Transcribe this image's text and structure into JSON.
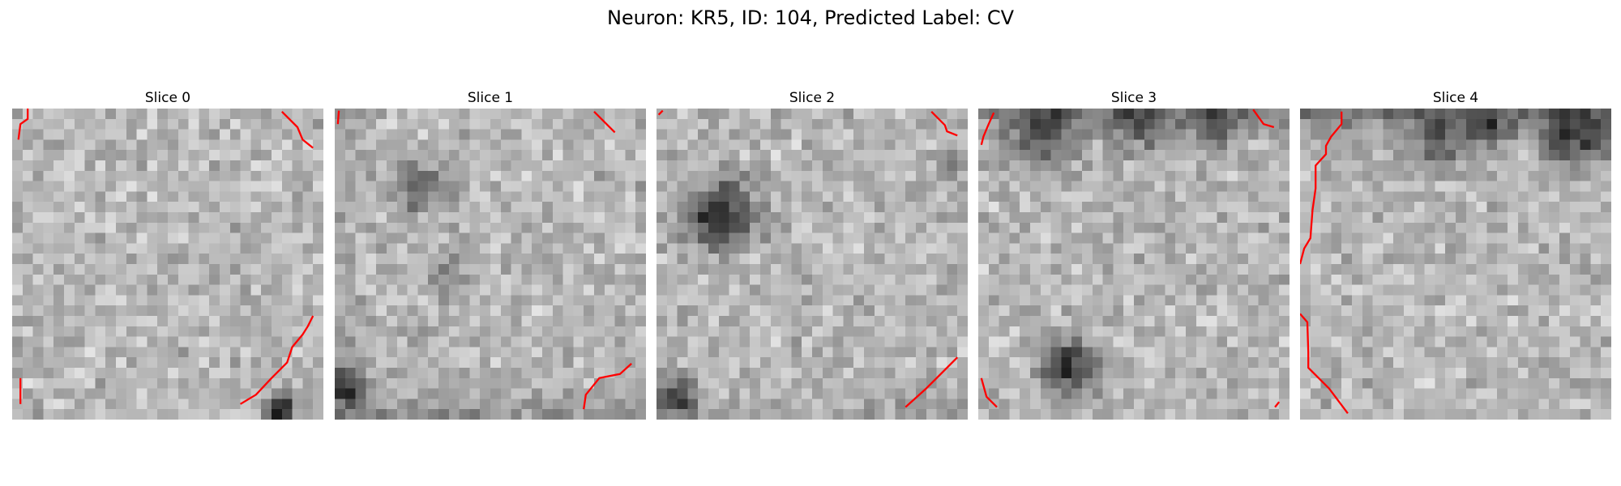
{
  "figure": {
    "title": "Neuron: KR5, ID: 104, Predicted Label: CV",
    "colormap": "gray",
    "contour_color": "#ff0000"
  },
  "slices": [
    {
      "title": "Slice 0",
      "contours": [
        [
          [
            1.5,
            0
          ],
          [
            1.5,
            1
          ],
          [
            0.8,
            1.5
          ],
          [
            0.6,
            3
          ]
        ],
        [
          [
            26,
            0.3
          ],
          [
            27.5,
            1.8
          ],
          [
            28,
            3
          ],
          [
            29,
            3.8
          ]
        ],
        [
          [
            0.8,
            26
          ],
          [
            0.8,
            28.5
          ]
        ],
        [
          [
            22,
            28.5
          ],
          [
            23.5,
            27.6
          ],
          [
            25,
            26
          ],
          [
            26.5,
            24.5
          ],
          [
            27,
            23
          ],
          [
            28,
            21.8
          ],
          [
            28.5,
            21
          ],
          [
            29,
            20
          ]
        ]
      ],
      "dark_spots": [
        [
          25.5,
          28.5,
          1.3,
          2.2
        ]
      ],
      "dark_edges": []
    },
    {
      "title": "Slice 1",
      "contours": [
        [
          [
            0.4,
            0.2
          ],
          [
            0.3,
            1.5
          ]
        ],
        [
          [
            25,
            0.3
          ],
          [
            27,
            2.3
          ]
        ],
        [
          [
            24,
            29
          ],
          [
            24.2,
            27.6
          ],
          [
            25.5,
            26
          ],
          [
            27.5,
            25.6
          ],
          [
            28.6,
            24.6
          ]
        ]
      ],
      "dark_spots": [
        [
          7.5,
          7.2,
          2.3,
          1.2
        ],
        [
          0.8,
          26.5,
          1.8,
          1.6
        ],
        [
          10.5,
          15,
          2.5,
          0.4
        ]
      ],
      "dark_edges": [
        [
          "bottom",
          0.35
        ],
        [
          "left",
          0.2
        ]
      ]
    },
    {
      "title": "Slice 2",
      "contours": [
        [
          [
            0.2,
            0.6
          ],
          [
            0.6,
            0.2
          ]
        ],
        [
          [
            26.5,
            0.3
          ],
          [
            27.8,
            1.6
          ],
          [
            28,
            2.2
          ],
          [
            29,
            2.6
          ]
        ],
        [
          [
            24,
            28.8
          ],
          [
            26,
            27
          ],
          [
            27.5,
            25.5
          ],
          [
            29,
            24
          ]
        ]
      ],
      "dark_spots": [
        [
          5.5,
          9.8,
          3.2,
          1.8
        ],
        [
          1.5,
          27.5,
          1.8,
          1.6
        ],
        [
          27.5,
          4.5,
          1.5,
          0.6
        ]
      ],
      "dark_edges": [
        [
          "bottom",
          0.25
        ]
      ]
    },
    {
      "title": "Slice 3",
      "contours": [
        [
          [
            1.5,
            0.4
          ],
          [
            1,
            1.5
          ],
          [
            0.5,
            2.7
          ],
          [
            0.3,
            3.5
          ]
        ],
        [
          [
            26.5,
            0.1
          ],
          [
            27.5,
            1.5
          ],
          [
            28.5,
            1.8
          ]
        ],
        [
          [
            0.3,
            26
          ],
          [
            0.8,
            27.8
          ],
          [
            1.8,
            28.8
          ]
        ],
        [
          [
            28.6,
            28.8
          ],
          [
            29,
            28.3
          ]
        ]
      ],
      "dark_spots": [
        [
          8,
          24.5,
          2.6,
          1.8
        ],
        [
          5.5,
          2,
          2.8,
          1.2
        ],
        [
          15,
          0.8,
          2.5,
          1.1
        ],
        [
          22,
          1.3,
          2.2,
          1.1
        ]
      ],
      "dark_edges": [
        [
          "top",
          0.6
        ]
      ]
    },
    {
      "title": "Slice 4",
      "contours": [
        [
          [
            4,
            0.3
          ],
          [
            4,
            1.5
          ],
          [
            3,
            2.7
          ],
          [
            2.5,
            3.6
          ],
          [
            2.5,
            4.4
          ],
          [
            1.5,
            5.5
          ],
          [
            1.5,
            7.7
          ],
          [
            1.2,
            9.8
          ],
          [
            1,
            12.5
          ],
          [
            0.4,
            13.5
          ],
          [
            0,
            15
          ]
        ],
        [
          [
            0,
            19.8
          ],
          [
            0.7,
            20.6
          ],
          [
            0.8,
            23.5
          ],
          [
            0.8,
            25
          ],
          [
            2.8,
            27
          ],
          [
            4.6,
            29.4
          ]
        ]
      ],
      "dark_spots": [
        [
          18,
          1.2,
          2.2,
          1.1
        ],
        [
          26,
          2,
          3,
          1.5
        ],
        [
          13,
          2.2,
          3,
          1.0
        ]
      ],
      "dark_edges": [
        [
          "top",
          0.6
        ]
      ]
    }
  ]
}
